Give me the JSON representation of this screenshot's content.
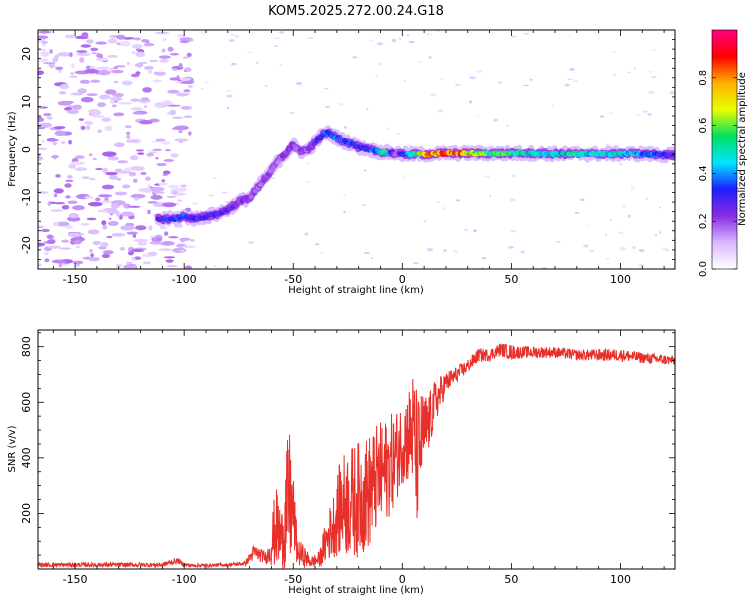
{
  "title": "KOM5.2025.272.00.24.G18",
  "chart_data": [
    {
      "type": "heatmap",
      "name": "spectrogram",
      "xlabel": "Height of straight line (km)",
      "ylabel": "Frequency (Hz)",
      "xlim": [
        -167,
        125
      ],
      "ylim": [
        -25,
        25
      ],
      "x_ticks": [
        -150,
        -100,
        -50,
        0,
        50,
        100
      ],
      "y_ticks": [
        -20,
        -10,
        0,
        10,
        20
      ],
      "colorbar": {
        "label": "Normalized spectral amplitude",
        "range": [
          0,
          1
        ],
        "ticks": [
          0.0,
          0.2,
          0.4,
          0.6,
          0.8
        ],
        "tick_labels": [
          "0.0",
          "0.2",
          "0.4",
          "0.6",
          "0.8"
        ],
        "colors": [
          "#ffffff",
          "#d9b8ff",
          "#8a2be2",
          "#1e1eff",
          "#00e5ff",
          "#00e060",
          "#e8ff00",
          "#ffb000",
          "#ff0000",
          "#ff0080"
        ]
      },
      "ridge": {
        "x": [
          -112,
          -105,
          -100,
          -95,
          -90,
          -85,
          -80,
          -75,
          -70,
          -67,
          -64,
          -60,
          -58,
          -55,
          -53,
          -50,
          -48,
          -45,
          -42,
          -40,
          -38,
          -35,
          -32,
          -30,
          -28,
          -25,
          -22,
          -20,
          -17,
          -15,
          -12,
          -10,
          -7,
          -5,
          -3,
          0,
          3,
          6,
          10,
          15,
          20,
          30,
          40,
          50,
          60,
          70,
          80,
          90,
          100,
          110,
          125
        ],
        "freq": [
          -14.5,
          -14.5,
          -14,
          -14.5,
          -14,
          -13.5,
          -12.5,
          -11,
          -10,
          -8.5,
          -6.5,
          -4.5,
          -3,
          -1.5,
          -0.5,
          1,
          0,
          -0.5,
          0.5,
          1.5,
          2.5,
          3.5,
          3,
          2.5,
          2,
          1.5,
          1,
          0.5,
          0.2,
          0,
          -0.3,
          -0.5,
          -0.6,
          -0.7,
          -0.8,
          -1,
          -1,
          -1,
          -1,
          -0.9,
          -0.8,
          -0.8,
          -0.8,
          -0.8,
          -0.8,
          -0.9,
          -0.9,
          -0.9,
          -0.9,
          -0.9,
          -1.2
        ],
        "amp": [
          0.3,
          0.35,
          0.35,
          0.3,
          0.3,
          0.28,
          0.28,
          0.25,
          0.22,
          0.2,
          0.2,
          0.2,
          0.18,
          0.22,
          0.25,
          0.22,
          0.2,
          0.2,
          0.22,
          0.28,
          0.3,
          0.35,
          0.38,
          0.4,
          0.38,
          0.35,
          0.32,
          0.3,
          0.32,
          0.35,
          0.45,
          0.55,
          0.5,
          0.3,
          0.2,
          0.3,
          0.45,
          0.6,
          0.75,
          0.85,
          0.95,
          0.75,
          0.6,
          0.55,
          0.5,
          0.45,
          0.55,
          0.45,
          0.5,
          0.4,
          0.3
        ]
      }
    },
    {
      "type": "line",
      "name": "snr",
      "xlabel": "Height of straight line (km)",
      "ylabel": "SNR (v/v)",
      "xlim": [
        -167,
        125
      ],
      "ylim": [
        0,
        860
      ],
      "x_ticks": [
        -150,
        -100,
        -50,
        0,
        50,
        100
      ],
      "y_ticks": [
        200,
        400,
        600,
        800
      ],
      "color": "#e8302a",
      "envelope": {
        "x": [
          -167,
          -110,
          -103,
          -100,
          -95,
          -80,
          -72,
          -68,
          -62,
          -58,
          -55,
          -52,
          -50,
          -48,
          -45,
          -42,
          -38,
          -35,
          -32,
          -28,
          -25,
          -20,
          -15,
          -12,
          -8,
          -5,
          -2,
          0,
          3,
          5,
          7,
          9,
          12,
          15,
          18,
          20,
          25,
          30,
          35,
          40,
          45,
          50,
          55,
          60,
          70,
          80,
          90,
          100,
          110,
          125
        ],
        "mean": [
          15,
          15,
          30,
          15,
          12,
          15,
          20,
          60,
          40,
          150,
          100,
          250,
          200,
          60,
          45,
          25,
          35,
          100,
          150,
          230,
          240,
          250,
          280,
          320,
          350,
          380,
          420,
          460,
          480,
          500,
          380,
          480,
          520,
          600,
          640,
          670,
          700,
          730,
          770,
          770,
          790,
          780,
          780,
          780,
          780,
          770,
          770,
          770,
          760,
          750
        ],
        "amp": [
          8,
          8,
          10,
          8,
          6,
          6,
          8,
          30,
          20,
          150,
          120,
          280,
          150,
          50,
          40,
          20,
          30,
          80,
          110,
          180,
          200,
          210,
          210,
          200,
          190,
          180,
          160,
          150,
          180,
          220,
          250,
          160,
          110,
          80,
          60,
          40,
          30,
          25,
          25,
          22,
          25,
          28,
          22,
          22,
          20,
          20,
          22,
          22,
          20,
          18
        ]
      }
    }
  ]
}
